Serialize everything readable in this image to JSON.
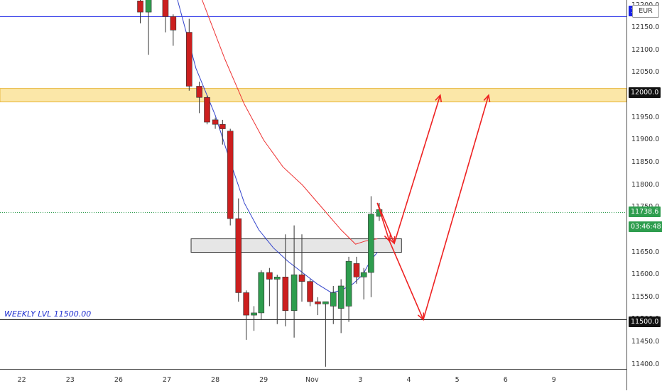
{
  "chart_data": {
    "type": "candlestick",
    "x_labels": [
      "22",
      "23",
      "26",
      "27",
      "28",
      "29",
      "Nov",
      "3",
      "4",
      "5",
      "6",
      "9"
    ],
    "y_ticks": [
      11400,
      11450,
      11500,
      11550,
      11600,
      11650,
      11700,
      11750,
      11800,
      11850,
      11900,
      11950,
      12000,
      12050,
      12100,
      12150,
      12200
    ],
    "y_tick_labels": [
      "11400.0",
      "11450.0",
      "11500.0",
      "11550.0",
      "11600.0",
      "11650.0",
      "11700.0",
      "11750.0",
      "11800.0",
      "11850.0",
      "11900.0",
      "11950.0",
      "12000.0",
      "12050.0",
      "12100.0",
      "12150.0",
      "12200.0"
    ],
    "ylim": [
      11390,
      12212
    ],
    "x_span": [
      -0.45,
      12.5
    ],
    "currency": "EUR",
    "candles": [
      {
        "x": 2.45,
        "o": 12210,
        "h": 12240,
        "l": 12160,
        "c": 12185
      },
      {
        "x": 2.62,
        "o": 12185,
        "h": 12240,
        "l": 12090,
        "c": 12220
      },
      {
        "x": 2.97,
        "o": 12220,
        "h": 12240,
        "l": 12140,
        "c": 12175
      },
      {
        "x": 3.13,
        "o": 12175,
        "h": 12180,
        "l": 12110,
        "c": 12145
      },
      {
        "x": 3.46,
        "o": 12140,
        "h": 12170,
        "l": 12010,
        "c": 12020
      },
      {
        "x": 3.67,
        "o": 12020,
        "h": 12030,
        "l": 11960,
        "c": 11995
      },
      {
        "x": 3.83,
        "o": 11995,
        "h": 12000,
        "l": 11935,
        "c": 11940
      },
      {
        "x": 4.0,
        "o": 11945,
        "h": 11950,
        "l": 11925,
        "c": 11935
      },
      {
        "x": 4.15,
        "o": 11935,
        "h": 11945,
        "l": 11890,
        "c": 11925
      },
      {
        "x": 4.31,
        "o": 11920,
        "h": 11925,
        "l": 11710,
        "c": 11725
      },
      {
        "x": 4.48,
        "o": 11725,
        "h": 11770,
        "l": 11540,
        "c": 11560
      },
      {
        "x": 4.64,
        "o": 11560,
        "h": 11565,
        "l": 11455,
        "c": 11510
      },
      {
        "x": 4.8,
        "o": 11510,
        "h": 11530,
        "l": 11475,
        "c": 11515
      },
      {
        "x": 4.95,
        "o": 11515,
        "h": 11610,
        "l": 11500,
        "c": 11605
      },
      {
        "x": 5.12,
        "o": 11605,
        "h": 11615,
        "l": 11530,
        "c": 11590
      },
      {
        "x": 5.28,
        "o": 11590,
        "h": 11600,
        "l": 11490,
        "c": 11595
      },
      {
        "x": 5.45,
        "o": 11595,
        "h": 11690,
        "l": 11485,
        "c": 11520
      },
      {
        "x": 5.63,
        "o": 11520,
        "h": 11710,
        "l": 11460,
        "c": 11600
      },
      {
        "x": 5.79,
        "o": 11600,
        "h": 11690,
        "l": 11540,
        "c": 11585
      },
      {
        "x": 5.96,
        "o": 11585,
        "h": 11590,
        "l": 11530,
        "c": 11540
      },
      {
        "x": 6.12,
        "o": 11540,
        "h": 11550,
        "l": 11510,
        "c": 11535
      },
      {
        "x": 6.28,
        "o": 11535,
        "h": 11540,
        "l": 11395,
        "c": 11540
      },
      {
        "x": 6.44,
        "o": 11530,
        "h": 11575,
        "l": 11490,
        "c": 11560
      },
      {
        "x": 6.6,
        "o": 11525,
        "h": 11590,
        "l": 11470,
        "c": 11575
      },
      {
        "x": 6.76,
        "o": 11530,
        "h": 11640,
        "l": 11495,
        "c": 11630
      },
      {
        "x": 6.92,
        "o": 11625,
        "h": 11640,
        "l": 11580,
        "c": 11595
      },
      {
        "x": 7.07,
        "o": 11595,
        "h": 11615,
        "l": 11545,
        "c": 11605
      },
      {
        "x": 7.22,
        "o": 11605,
        "h": 11775,
        "l": 11550,
        "c": 11735
      },
      {
        "x": 7.39,
        "o": 11730,
        "h": 11760,
        "l": 11720,
        "c": 11745
      }
    ],
    "ma_fast": [
      [
        3.2,
        12220
      ],
      [
        3.6,
        12060
      ],
      [
        4.0,
        11955
      ],
      [
        4.3,
        11855
      ],
      [
        4.6,
        11760
      ],
      [
        4.9,
        11700
      ],
      [
        5.2,
        11660
      ],
      [
        5.5,
        11630
      ],
      [
        5.8,
        11605
      ],
      [
        6.1,
        11580
      ],
      [
        6.4,
        11560
      ],
      [
        6.6,
        11565
      ],
      [
        6.85,
        11580
      ],
      [
        7.05,
        11600
      ],
      [
        7.2,
        11630
      ],
      [
        7.35,
        11650
      ]
    ],
    "ma_slow": [
      [
        3.7,
        12220
      ],
      [
        4.2,
        12080
      ],
      [
        4.6,
        11980
      ],
      [
        5.0,
        11900
      ],
      [
        5.4,
        11840
      ],
      [
        5.8,
        11800
      ],
      [
        6.2,
        11750
      ],
      [
        6.6,
        11700
      ],
      [
        6.9,
        11668
      ],
      [
        7.1,
        11675
      ],
      [
        7.35,
        11680
      ]
    ],
    "zones": [
      {
        "name": "resistance-zone",
        "y1": 11985,
        "y2": 12015,
        "x1": -0.45,
        "x2": 12.5,
        "fill": "#fbe7a8",
        "stroke": "#e8b740"
      },
      {
        "name": "support-box",
        "y1": 11650,
        "y2": 11680,
        "x1": 3.5,
        "x2": 7.85,
        "fill": "#e6e6e6",
        "stroke": "#333333"
      }
    ],
    "hlines": [
      {
        "name": "blue-level-line",
        "y": 12175,
        "color": "#1a22e6"
      },
      {
        "name": "weekly-level-line",
        "y": 11500,
        "color": "#111111"
      },
      {
        "name": "current-price-line",
        "y": 11738.6,
        "color": "#2e9d4e",
        "dashed": true
      }
    ],
    "arrows": [
      {
        "points": [
          [
            7.35,
            11760
          ],
          [
            7.7,
            11670
          ],
          [
            8.65,
            12000
          ]
        ]
      },
      {
        "points": [
          [
            7.35,
            11760
          ],
          [
            7.6,
            11675
          ],
          [
            8.3,
            11500
          ],
          [
            9.65,
            12000
          ]
        ]
      }
    ],
    "annotation": "WEEKLY LVL 11500.00",
    "colors": {
      "bull": "#2e9d4e",
      "bear": "#cc1f1f",
      "ma_fast": "#3344cc",
      "ma_slow": "#ee3333",
      "arrow": "#ee2222"
    },
    "price_tags": {
      "current_price": "11738.6",
      "countdown": "03:46:48",
      "resistance": "12000.0",
      "weekly": "11500.0",
      "blue_level": "1"
    }
  }
}
